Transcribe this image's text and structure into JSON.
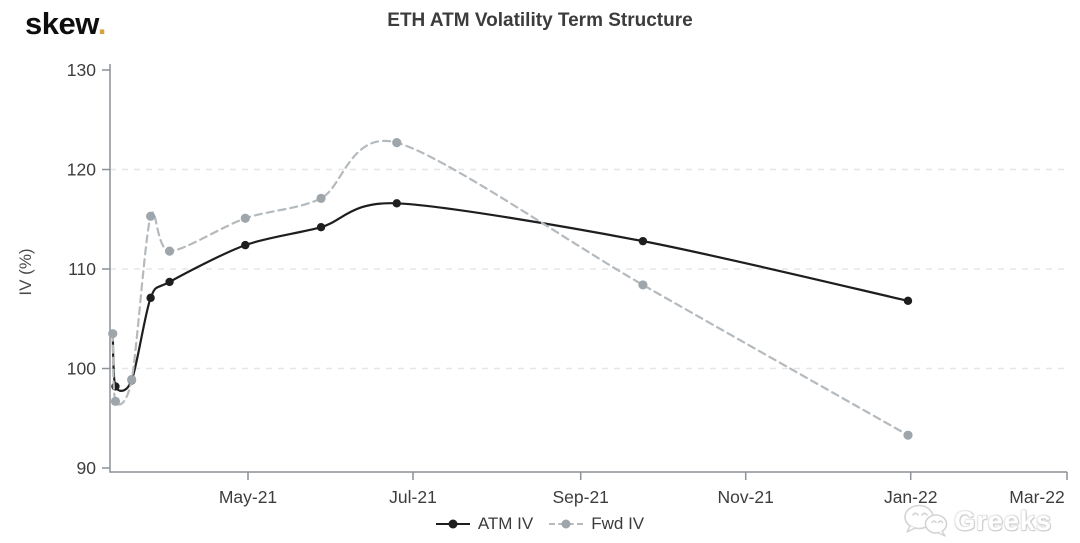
{
  "header": {
    "logo_text": "skew",
    "logo_dot": "."
  },
  "watermark": {
    "text": "Greeks",
    "icon": "wechat-chat-bubbles"
  },
  "chart_data": {
    "type": "line",
    "title": "ETH ATM Volatility Term Structure",
    "xlabel": "",
    "ylabel": "IV (%)",
    "ylim": [
      90,
      130
    ],
    "xlim_dates_estimated": [
      "2021-03-11",
      "2022-02-28"
    ],
    "grid": "horizontal dashed gridlines at 100, 110, 120",
    "grid_yticks": [
      100,
      110,
      120
    ],
    "yticks": [
      90,
      100,
      110,
      120,
      130
    ],
    "xticks": [
      {
        "label": "May-21",
        "date": "2021-05-01"
      },
      {
        "label": "Jul-21",
        "date": "2021-07-01"
      },
      {
        "label": "Sep-21",
        "date": "2021-09-01"
      },
      {
        "label": "Nov-21",
        "date": "2021-11-01"
      },
      {
        "label": "Jan-22",
        "date": "2022-01-01"
      },
      {
        "label": "Mar-22",
        "date": "2022-03-01"
      }
    ],
    "legend_position": "bottom-center",
    "x_expiry_dates_estimated": [
      "2021-03-12",
      "2021-03-13",
      "2021-03-19",
      "2021-03-26",
      "2021-04-02",
      "2021-04-30",
      "2021-05-28",
      "2021-06-25",
      "2021-09-24",
      "2021-12-31"
    ],
    "series": [
      {
        "name": "ATM IV",
        "style": "solid",
        "marker": "circle",
        "color": "#1e1e1e",
        "values": [
          103.5,
          98.2,
          98.8,
          107.1,
          108.7,
          112.4,
          114.2,
          116.6,
          112.8,
          106.8
        ]
      },
      {
        "name": "Fwd IV",
        "style": "dashed",
        "marker": "circle",
        "color": "#9fa6ab",
        "line_color": "#b4babe",
        "values": [
          103.5,
          96.7,
          98.9,
          115.3,
          111.8,
          115.1,
          117.1,
          122.7,
          108.4,
          93.3
        ]
      }
    ],
    "colors": {
      "axis": "#8b9197",
      "gridline": "#e4e6e7",
      "tick_text": "#3d3d3d",
      "title_text": "#3c3c3c",
      "logo_accent": "#d7a13c"
    }
  }
}
